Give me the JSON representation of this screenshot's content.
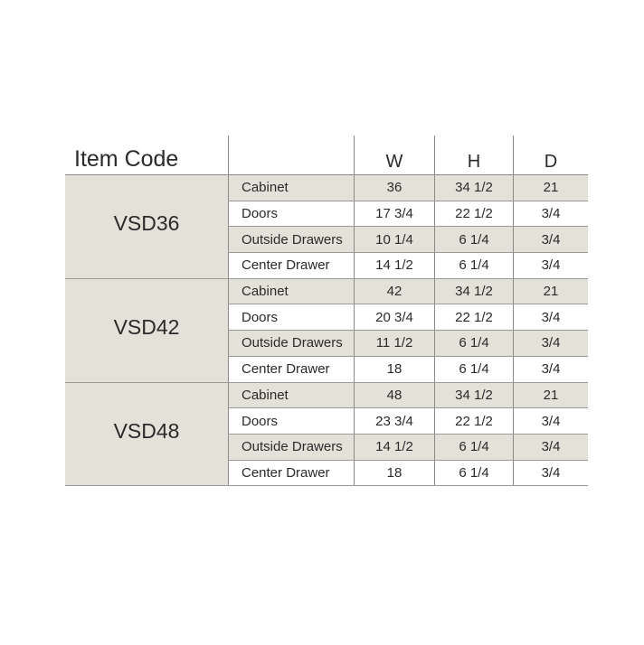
{
  "headers": {
    "item_code": "Item Code",
    "label": "",
    "w": "W",
    "h": "H",
    "d": "D"
  },
  "groups": [
    {
      "code": "VSD36",
      "rows": [
        [
          "Cabinet",
          "36",
          "34 1/2",
          "21"
        ],
        [
          "Doors",
          "17 3/4",
          "22 1/2",
          "3/4"
        ],
        [
          "Outside Drawers",
          "10 1/4",
          "6 1/4",
          "3/4"
        ],
        [
          "Center Drawer",
          "14 1/2",
          "6 1/4",
          "3/4"
        ]
      ]
    },
    {
      "code": "VSD42",
      "rows": [
        [
          "Cabinet",
          "42",
          "34 1/2",
          "21"
        ],
        [
          "Doors",
          "20 3/4",
          "22 1/2",
          "3/4"
        ],
        [
          "Outside Drawers",
          "11 1/2",
          "6 1/4",
          "3/4"
        ],
        [
          "Center Drawer",
          "18",
          "6 1/4",
          "3/4"
        ]
      ]
    },
    {
      "code": "VSD48",
      "rows": [
        [
          "Cabinet",
          "48",
          "34 1/2",
          "21"
        ],
        [
          "Doors",
          "23 3/4",
          "22 1/2",
          "3/4"
        ],
        [
          "Outside Drawers",
          "14 1/2",
          "6 1/4",
          "3/4"
        ],
        [
          "Center Drawer",
          "18",
          "6 1/4",
          "3/4"
        ]
      ]
    }
  ],
  "colors": {
    "shade": "#e4e1d8"
  }
}
